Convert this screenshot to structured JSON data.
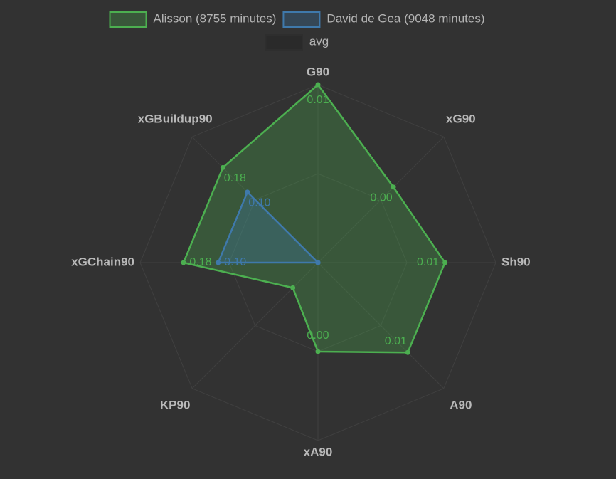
{
  "chart_data": {
    "type": "radar",
    "categories": [
      "G90",
      "xG90",
      "Sh90",
      "A90",
      "xA90",
      "KP90",
      "xGChain90",
      "xGBuildup90"
    ],
    "rlim": [
      [
        0,
        0.01
      ],
      [
        0,
        0.005
      ],
      [
        0,
        0.014
      ],
      [
        0,
        0.014
      ],
      [
        0,
        0.004
      ],
      [
        0,
        0.1
      ],
      [
        -0.13,
        0.28
      ],
      [
        -0.13,
        0.28
      ]
    ],
    "grid": true,
    "series": [
      {
        "name": "Alisson (8755 minutes)",
        "color": "#4caf50",
        "values": [
          0.01,
          0.003,
          0.01,
          0.01,
          0.002,
          0.02,
          0.18,
          0.18
        ],
        "value_labels": [
          "0.01",
          "0.00",
          "0.01",
          "0.01",
          "0.00",
          null,
          "0.18",
          "0.18"
        ]
      },
      {
        "name": "David de Gea (9048 minutes)",
        "color": "#3f79ab",
        "values": [
          0,
          0,
          0,
          0,
          0,
          0,
          0.1,
          0.1
        ],
        "value_labels": [
          null,
          null,
          null,
          null,
          null,
          null,
          "0.10",
          "0.10"
        ]
      },
      {
        "name": "avg",
        "color": "#2a2a2a",
        "values": [
          null,
          null,
          null,
          null,
          null,
          null,
          null,
          null
        ]
      }
    ]
  }
}
